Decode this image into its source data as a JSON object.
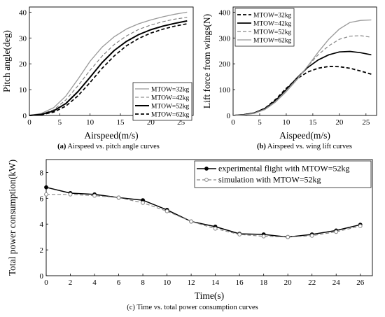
{
  "chart_data": [
    {
      "id": "a",
      "type": "line",
      "caption_tag": "(a)",
      "caption": "Airspeed vs. pitch angle curves",
      "xlabel": "Airspeed(m/s)",
      "ylabel": "Pitch angle(deg)",
      "xlim": [
        0,
        27
      ],
      "ylim": [
        0,
        42
      ],
      "xticks": [
        0,
        5,
        10,
        15,
        20,
        25
      ],
      "yticks": [
        0,
        10,
        20,
        30,
        40
      ],
      "grid": false,
      "legend_position": "bottom-right",
      "x": [
        0,
        2,
        4,
        6,
        8,
        10,
        12,
        14,
        16,
        18,
        20,
        22,
        24,
        26
      ],
      "series": [
        {
          "name": "MTOW=32kg",
          "color": "#999999",
          "dash": "solid",
          "width": 1.3,
          "values": [
            0,
            0.8,
            3,
            7.5,
            14,
            21,
            26.5,
            30.5,
            33.5,
            35.5,
            37,
            38.2,
            39.2,
            40
          ]
        },
        {
          "name": "MTOW=42kg",
          "color": "#777777",
          "dash": "dashed",
          "width": 1.1,
          "values": [
            0,
            0.6,
            2.2,
            6,
            11.5,
            17.5,
            23,
            27.5,
            30.8,
            33.3,
            35,
            36.3,
            37.3,
            38
          ]
        },
        {
          "name": "MTOW=52kg",
          "color": "#000000",
          "dash": "solid",
          "width": 2.0,
          "values": [
            0,
            0.4,
            1.8,
            4.6,
            9.2,
            14.8,
            20.5,
            25.2,
            28.7,
            31.3,
            33.2,
            34.6,
            35.7,
            36.6
          ]
        },
        {
          "name": "MTOW=62kg",
          "color": "#000000",
          "dash": "dashed",
          "width": 1.7,
          "values": [
            0,
            0.3,
            1.3,
            3.6,
            7.6,
            12.8,
            18.3,
            23.1,
            27,
            29.8,
            31.9,
            33.4,
            34.6,
            35.5
          ]
        }
      ]
    },
    {
      "id": "b",
      "type": "line",
      "caption_tag": "(b)",
      "caption": "Airspeed vs. wing lift curves",
      "xlabel": "Aispeed(m/s)",
      "ylabel": "Lift force from wings(N)",
      "xlim": [
        0,
        27
      ],
      "ylim": [
        0,
        420
      ],
      "xticks": [
        0,
        5,
        10,
        15,
        20,
        25
      ],
      "yticks": [
        0,
        100,
        200,
        300,
        400
      ],
      "grid": false,
      "legend_position": "top-left",
      "x": [
        0,
        2,
        4,
        6,
        8,
        10,
        12,
        14,
        16,
        18,
        20,
        22,
        24,
        26
      ],
      "series": [
        {
          "name": "MTOW=32kg",
          "color": "#000000",
          "dash": "dashed",
          "width": 1.8,
          "values": [
            0,
            3,
            10,
            28,
            62,
            105,
            142,
            168,
            183,
            190,
            189,
            183,
            172,
            160
          ]
        },
        {
          "name": "MTOW=42kg",
          "color": "#000000",
          "dash": "solid",
          "width": 1.7,
          "values": [
            0,
            3,
            10,
            27,
            58,
            100,
            145,
            185,
            215,
            235,
            246,
            248,
            243,
            235
          ]
        },
        {
          "name": "MTOW=52kg",
          "color": "#888888",
          "dash": "dashed",
          "width": 1.2,
          "values": [
            0,
            2,
            9,
            25,
            55,
            96,
            142,
            190,
            235,
            270,
            295,
            307,
            309,
            303
          ]
        },
        {
          "name": "MTOW=62kg",
          "color": "#999999",
          "dash": "solid",
          "width": 1.3,
          "values": [
            0,
            2,
            8,
            23,
            52,
            92,
            138,
            190,
            245,
            295,
            335,
            360,
            368,
            370
          ]
        }
      ]
    },
    {
      "id": "c",
      "type": "line",
      "caption_tag": "",
      "caption": "(c) Time vs. total power consumption curves",
      "xlabel": "Time(s)",
      "ylabel": "Total power consumption(kW)",
      "xlim": [
        0,
        27
      ],
      "ylim": [
        0,
        9
      ],
      "xticks": [
        0,
        2,
        4,
        6,
        8,
        10,
        12,
        14,
        16,
        18,
        20,
        22,
        24,
        26
      ],
      "yticks": [
        0,
        2,
        4,
        6,
        8
      ],
      "grid": false,
      "legend_position": "top-right",
      "x": [
        0,
        2,
        4,
        6,
        8,
        10,
        12,
        14,
        16,
        18,
        20,
        22,
        24,
        26
      ],
      "series": [
        {
          "name": "experimental flight with MTOW=52kg",
          "color": "#000000",
          "dash": "solid",
          "width": 1.5,
          "marker": "filled-circle",
          "values": [
            6.85,
            6.4,
            6.3,
            6.05,
            5.85,
            5.1,
            4.2,
            3.8,
            3.25,
            3.2,
            3.0,
            3.2,
            3.5,
            3.95
          ]
        },
        {
          "name": "simulation with MTOW=52kg",
          "color": "#888888",
          "dash": "dashed",
          "width": 1.2,
          "marker": "open-circle",
          "values": [
            6.3,
            6.3,
            6.2,
            6.05,
            5.65,
            5.0,
            4.2,
            3.65,
            3.2,
            3.05,
            3.0,
            3.1,
            3.4,
            3.85
          ]
        }
      ]
    }
  ]
}
